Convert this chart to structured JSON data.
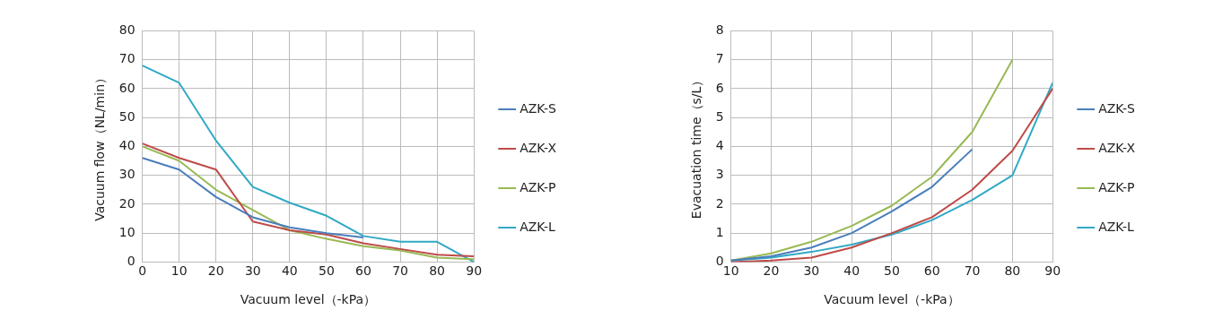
{
  "chart_data": [
    {
      "type": "line",
      "xlabel": "Vacuum level（-kPa）",
      "ylabel": "Vacuum flow（NL/min）",
      "x": [
        0,
        10,
        20,
        30,
        40,
        50,
        60,
        70,
        80,
        90
      ],
      "xlim": [
        0,
        90
      ],
      "xticks": [
        0,
        10,
        20,
        30,
        40,
        50,
        60,
        70,
        80,
        90
      ],
      "ylim": [
        0,
        80
      ],
      "yticks": [
        0,
        10,
        20,
        30,
        40,
        50,
        60,
        70,
        80
      ],
      "grid": true,
      "legend": "right",
      "marker": "none",
      "line_style": "solid",
      "series": [
        {
          "name": "AZK-S",
          "color": "#4a7ebb",
          "values": [
            36,
            32,
            22.5,
            15.5,
            12,
            10,
            8.5,
            null,
            null,
            null
          ]
        },
        {
          "name": "AZK-X",
          "color": "#be4b48",
          "values": [
            41,
            36,
            32,
            14,
            11,
            9.5,
            6.5,
            4.5,
            2.5,
            2
          ]
        },
        {
          "name": "AZK-P",
          "color": "#98b954",
          "values": [
            40,
            35,
            25,
            18,
            11,
            8,
            5.5,
            4,
            1.5,
            1
          ]
        },
        {
          "name": "AZK-L",
          "color": "#31a9c5",
          "values": [
            68,
            62,
            42,
            26,
            20.5,
            16,
            9,
            7,
            7,
            0
          ]
        }
      ]
    },
    {
      "type": "line",
      "xlabel": "Vacuum level（-kPa）",
      "ylabel": "Evacuation time（s/L）",
      "x": [
        10,
        20,
        30,
        40,
        50,
        60,
        70,
        80,
        90
      ],
      "xlim": [
        10,
        90
      ],
      "xticks": [
        10,
        20,
        30,
        40,
        50,
        60,
        70,
        80,
        90
      ],
      "ylim": [
        0,
        8
      ],
      "yticks": [
        0,
        1,
        2,
        3,
        4,
        5,
        6,
        7,
        8
      ],
      "grid": true,
      "legend": "right",
      "marker": "none",
      "line_style": "solid",
      "series": [
        {
          "name": "AZK-S",
          "color": "#4a7ebb",
          "values": [
            0.05,
            0.2,
            0.5,
            1.0,
            1.75,
            2.6,
            3.9,
            null,
            null
          ]
        },
        {
          "name": "AZK-X",
          "color": "#be4b48",
          "values": [
            0,
            0.05,
            0.15,
            0.5,
            1.0,
            1.55,
            2.5,
            3.85,
            6.0
          ]
        },
        {
          "name": "AZK-P",
          "color": "#98b954",
          "values": [
            0.05,
            0.3,
            0.7,
            1.25,
            1.95,
            2.95,
            4.5,
            7.0,
            null
          ]
        },
        {
          "name": "AZK-L",
          "color": "#31a9c5",
          "values": [
            0.05,
            0.15,
            0.35,
            0.6,
            0.95,
            1.45,
            2.15,
            3.0,
            6.2
          ]
        }
      ]
    }
  ]
}
